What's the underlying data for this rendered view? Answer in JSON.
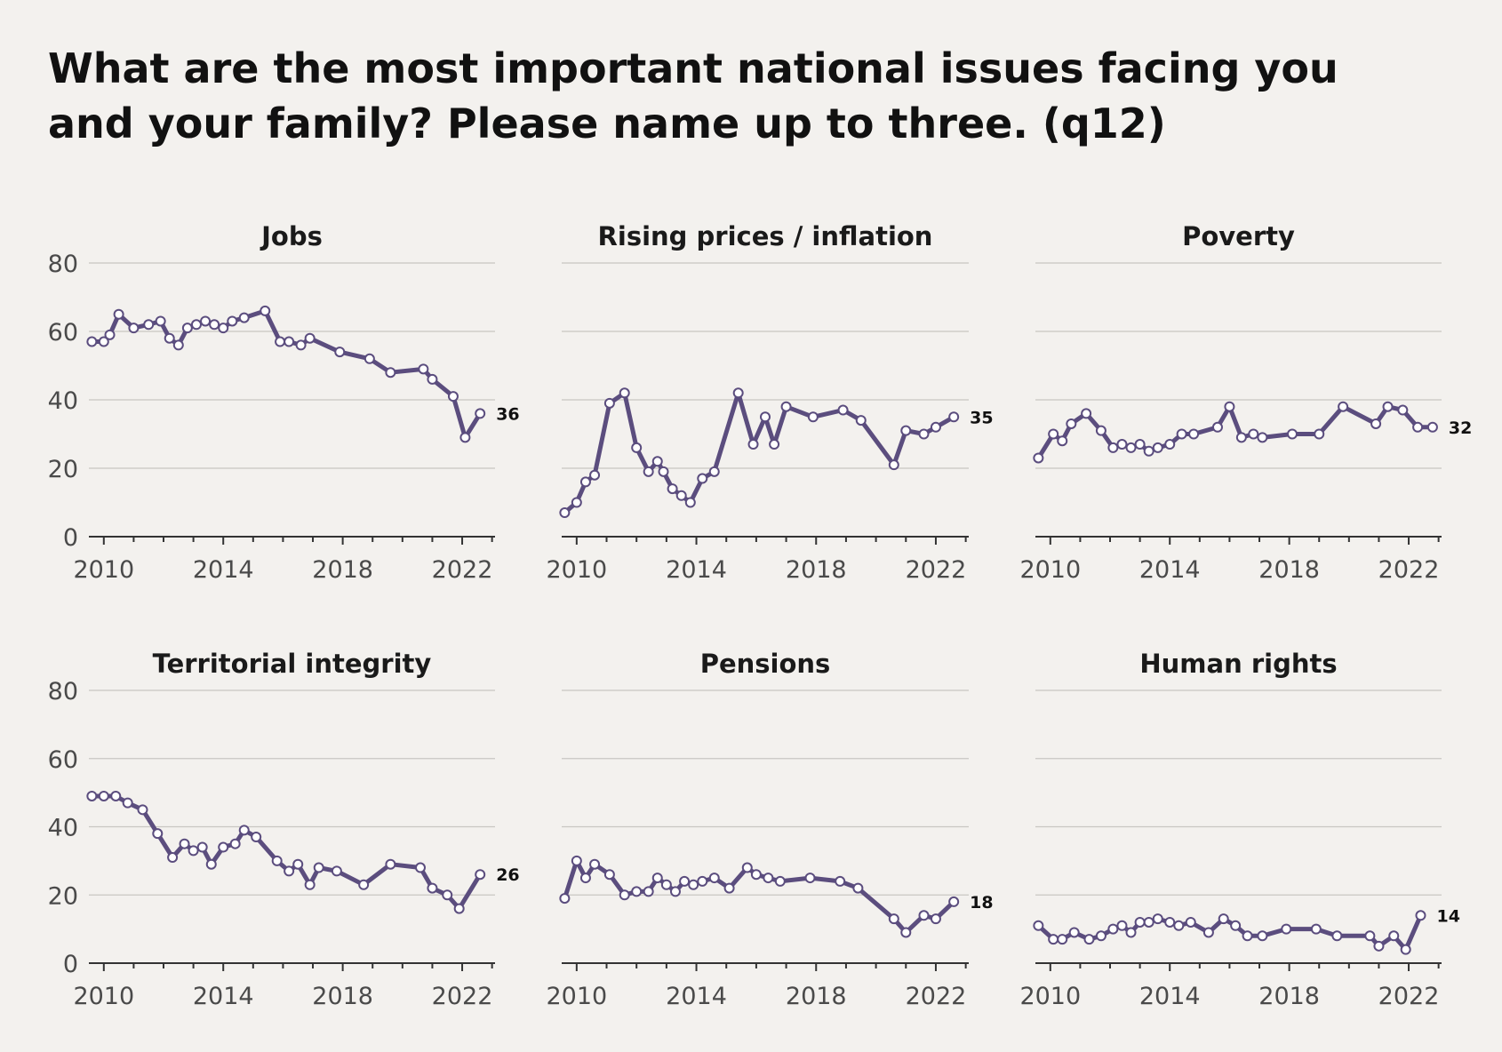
{
  "title": "What are the most important national issues facing you and your family? Please name up to three. (q12)",
  "colors": {
    "background": "#f3f1ee",
    "series": "#5b4d7e"
  },
  "chart_data": [
    {
      "type": "line",
      "title": "Jobs",
      "xlim": [
        2009.5,
        2023.1
      ],
      "ylim": [
        0,
        80
      ],
      "x_ticks": [
        2010,
        2014,
        2018,
        2022
      ],
      "y_ticks": [
        0,
        20,
        40,
        60,
        80
      ],
      "grid": true,
      "end_label": "36",
      "series": [
        {
          "x": [
            2009.6,
            2010.0,
            2010.2,
            2010.5,
            2011.0,
            2011.5,
            2011.9,
            2012.2,
            2012.5,
            2012.8,
            2013.1,
            2013.4,
            2013.7,
            2014.0,
            2014.3,
            2014.7,
            2015.4,
            2015.9,
            2016.2,
            2016.6,
            2016.9,
            2017.9,
            2018.9,
            2019.6,
            2020.7,
            2021.0,
            2021.7,
            2022.1,
            2022.6
          ],
          "y": [
            57,
            57,
            59,
            65,
            61,
            62,
            63,
            58,
            56,
            61,
            62,
            63,
            62,
            61,
            63,
            64,
            66,
            57,
            57,
            56,
            58,
            54,
            52,
            48,
            49,
            46,
            41,
            29,
            36
          ]
        }
      ]
    },
    {
      "type": "line",
      "title": "Rising prices / inflation",
      "xlim": [
        2009.5,
        2023.1
      ],
      "ylim": [
        0,
        80
      ],
      "x_ticks": [
        2010,
        2014,
        2018,
        2022
      ],
      "y_ticks": [
        0,
        20,
        40,
        60,
        80
      ],
      "grid": true,
      "end_label": "35",
      "series": [
        {
          "x": [
            2009.6,
            2010.0,
            2010.3,
            2010.6,
            2011.1,
            2011.6,
            2012.0,
            2012.4,
            2012.7,
            2012.9,
            2013.2,
            2013.5,
            2013.8,
            2014.2,
            2014.6,
            2015.4,
            2015.9,
            2016.3,
            2016.6,
            2017.0,
            2017.9,
            2018.9,
            2019.5,
            2020.6,
            2021.0,
            2021.6,
            2022.0,
            2022.6
          ],
          "y": [
            7,
            10,
            16,
            18,
            39,
            42,
            26,
            19,
            22,
            19,
            14,
            12,
            10,
            17,
            19,
            42,
            27,
            35,
            27,
            38,
            35,
            37,
            34,
            21,
            31,
            30,
            32,
            35
          ]
        }
      ]
    },
    {
      "type": "line",
      "title": "Poverty",
      "xlim": [
        2009.5,
        2023.1
      ],
      "ylim": [
        0,
        80
      ],
      "x_ticks": [
        2010,
        2014,
        2018,
        2022
      ],
      "y_ticks": [
        0,
        20,
        40,
        60,
        80
      ],
      "grid": true,
      "end_label": "32",
      "series": [
        {
          "x": [
            2009.6,
            2010.1,
            2010.4,
            2010.7,
            2011.2,
            2011.7,
            2012.1,
            2012.4,
            2012.7,
            2013.0,
            2013.3,
            2013.6,
            2014.0,
            2014.4,
            2014.8,
            2015.6,
            2016.0,
            2016.4,
            2016.8,
            2017.1,
            2018.1,
            2019.0,
            2019.8,
            2020.9,
            2021.3,
            2021.8,
            2022.3,
            2022.8
          ],
          "y": [
            23,
            30,
            28,
            33,
            36,
            31,
            26,
            27,
            26,
            27,
            25,
            26,
            27,
            30,
            30,
            32,
            38,
            29,
            30,
            29,
            30,
            30,
            38,
            33,
            38,
            37,
            32,
            32
          ]
        }
      ]
    },
    {
      "type": "line",
      "title": "Territorial integrity",
      "xlim": [
        2009.5,
        2023.1
      ],
      "ylim": [
        0,
        80
      ],
      "x_ticks": [
        2010,
        2014,
        2018,
        2022
      ],
      "y_ticks": [
        0,
        20,
        40,
        60,
        80
      ],
      "grid": true,
      "end_label": "26",
      "series": [
        {
          "x": [
            2009.6,
            2010.0,
            2010.4,
            2010.8,
            2011.3,
            2011.8,
            2012.3,
            2012.7,
            2013.0,
            2013.3,
            2013.6,
            2014.0,
            2014.4,
            2014.7,
            2015.1,
            2015.8,
            2016.2,
            2016.5,
            2016.9,
            2017.2,
            2017.8,
            2018.7,
            2019.6,
            2020.6,
            2021.0,
            2021.5,
            2021.9,
            2022.6
          ],
          "y": [
            49,
            49,
            49,
            47,
            45,
            38,
            31,
            35,
            33,
            34,
            29,
            34,
            35,
            39,
            37,
            30,
            27,
            29,
            23,
            28,
            27,
            23,
            29,
            28,
            22,
            20,
            16,
            26
          ]
        }
      ]
    },
    {
      "type": "line",
      "title": "Pensions",
      "xlim": [
        2009.5,
        2023.1
      ],
      "ylim": [
        0,
        80
      ],
      "x_ticks": [
        2010,
        2014,
        2018,
        2022
      ],
      "y_ticks": [
        0,
        20,
        40,
        60,
        80
      ],
      "grid": true,
      "end_label": "18",
      "series": [
        {
          "x": [
            2009.6,
            2010.0,
            2010.3,
            2010.6,
            2011.1,
            2011.6,
            2012.0,
            2012.4,
            2012.7,
            2013.0,
            2013.3,
            2013.6,
            2013.9,
            2014.2,
            2014.6,
            2015.1,
            2015.7,
            2016.0,
            2016.4,
            2016.8,
            2017.8,
            2018.8,
            2019.4,
            2020.6,
            2021.0,
            2021.6,
            2022.0,
            2022.6
          ],
          "y": [
            19,
            30,
            25,
            29,
            26,
            20,
            21,
            21,
            25,
            23,
            21,
            24,
            23,
            24,
            25,
            22,
            28,
            26,
            25,
            24,
            25,
            24,
            22,
            13,
            9,
            14,
            13,
            18
          ]
        }
      ]
    },
    {
      "type": "line",
      "title": "Human rights",
      "xlim": [
        2009.5,
        2023.1
      ],
      "ylim": [
        0,
        80
      ],
      "x_ticks": [
        2010,
        2014,
        2018,
        2022
      ],
      "y_ticks": [
        0,
        20,
        40,
        60,
        80
      ],
      "grid": true,
      "end_label": "14",
      "series": [
        {
          "x": [
            2009.6,
            2010.1,
            2010.4,
            2010.8,
            2011.3,
            2011.7,
            2012.1,
            2012.4,
            2012.7,
            2013.0,
            2013.3,
            2013.6,
            2014.0,
            2014.3,
            2014.7,
            2015.3,
            2015.8,
            2016.2,
            2016.6,
            2017.1,
            2017.9,
            2018.9,
            2019.6,
            2020.7,
            2021.0,
            2021.5,
            2021.9,
            2022.4
          ],
          "y": [
            11,
            7,
            7,
            9,
            7,
            8,
            10,
            11,
            9,
            12,
            12,
            13,
            12,
            11,
            12,
            9,
            13,
            11,
            8,
            8,
            10,
            10,
            8,
            8,
            5,
            8,
            4,
            14
          ]
        }
      ]
    }
  ]
}
